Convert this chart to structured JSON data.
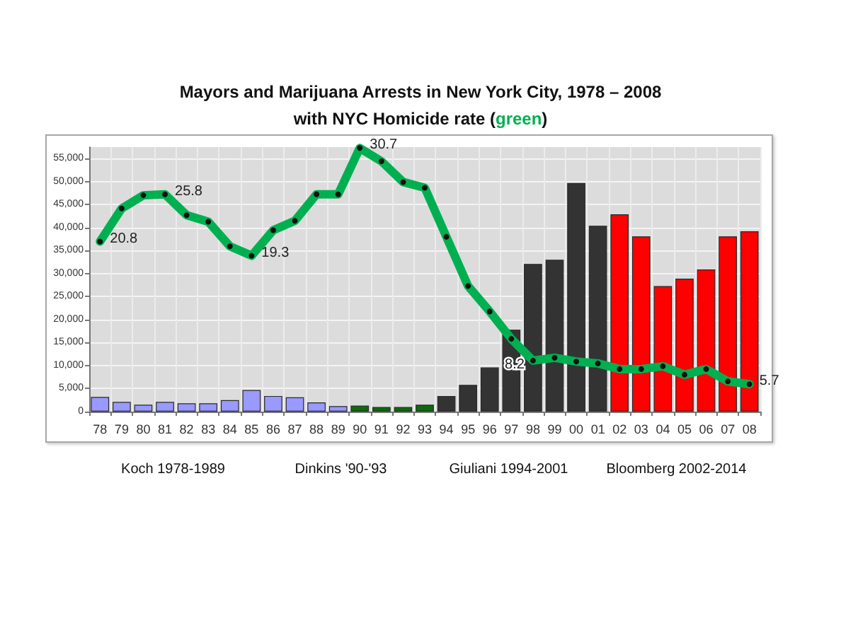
{
  "chart_data": {
    "type": "bar",
    "title": "Mayors and Marijuana Arrests in New York City, 1978 – 2008",
    "subtitle": "with NYC Homicide rate (green)",
    "categories": [
      "78",
      "79",
      "80",
      "81",
      "82",
      "83",
      "84",
      "85",
      "86",
      "87",
      "88",
      "89",
      "90",
      "91",
      "92",
      "93",
      "94",
      "95",
      "96",
      "97",
      "98",
      "99",
      "00",
      "01",
      "02",
      "03",
      "04",
      "05",
      "06",
      "07",
      "08"
    ],
    "series": [
      {
        "colors": [
          "#9999ff",
          "#9999ff",
          "#9999ff",
          "#9999ff",
          "#9999ff",
          "#9999ff",
          "#9999ff",
          "#9999ff",
          "#9999ff",
          "#9999ff",
          "#9999ff",
          "#9999ff",
          "#0b6b0b",
          "#0b6b0b",
          "#0b6b0b",
          "#0b6b0b",
          "#333333",
          "#333333",
          "#333333",
          "#333333",
          "#333333",
          "#333333",
          "#333333",
          "#333333",
          "#ff0000",
          "#ff0000",
          "#ff0000",
          "#ff0000",
          "#ff0000",
          "#ff0000",
          "#ff0000"
        ],
        "values": [
          3200,
          2100,
          1500,
          2100,
          1800,
          1800,
          2500,
          4700,
          3400,
          3100,
          2000,
          1200,
          1300,
          1000,
          1000,
          1500,
          3400,
          5800,
          9600,
          17800,
          32100,
          33000,
          49700,
          40400,
          42900,
          38100,
          27300,
          28900,
          30900,
          38100,
          39200
        ]
      },
      {
        "type": "line",
        "axis": "y2",
        "color": "#00b050",
        "values": [
          20.8,
          24.3,
          25.7,
          25.8,
          23.6,
          22.9,
          20.3,
          19.3,
          22.0,
          23.0,
          25.8,
          25.8,
          30.7,
          29.3,
          27.1,
          26.5,
          21.3,
          16.1,
          13.4,
          10.5,
          8.2,
          8.5,
          8.1,
          7.9,
          7.3,
          7.3,
          7.6,
          6.7,
          7.3,
          6.0,
          5.7
        ],
        "value_labels": [
          "20.8",
          null,
          null,
          "25.8",
          null,
          null,
          null,
          "19.3",
          null,
          null,
          null,
          null,
          "30.7",
          null,
          null,
          null,
          null,
          null,
          null,
          null,
          "8.2",
          null,
          null,
          null,
          null,
          null,
          null,
          null,
          null,
          null,
          "5.7"
        ]
      }
    ],
    "ylim": [
      0,
      57500
    ],
    "yticks": [
      0,
      {
        "value": 5000,
        "label": "5,000"
      },
      {
        "value": 10000,
        "label": "10,000"
      },
      {
        "value": 15000,
        "label": "15,000"
      },
      {
        "value": 20000,
        "label": "20,000"
      },
      {
        "value": 25000,
        "label": "25,000"
      },
      {
        "value": 30000,
        "label": "30,000"
      },
      {
        "value": 35000,
        "label": "35,000"
      },
      {
        "value": 40000,
        "label": "40,000"
      },
      {
        "value": 45000,
        "label": "45,000"
      },
      {
        "value": 50000,
        "label": "50,000"
      },
      {
        "value": 55000,
        "label": "55,000"
      }
    ],
    "y2lim": [
      2.8,
      30.8
    ],
    "grid": true,
    "marker": "circle",
    "line_style": "solid",
    "annotations": [
      "Koch 1978-1989",
      "Dinkins '90-'93",
      "Giuliani 1994-2001",
      "Bloomberg 2002-2014"
    ]
  }
}
